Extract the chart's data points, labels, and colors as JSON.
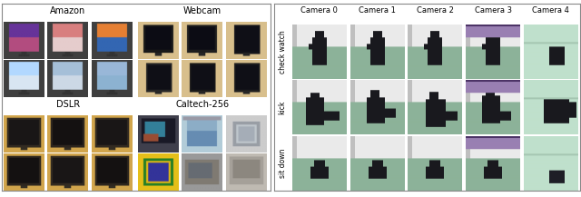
{
  "fig_width": 6.4,
  "fig_height": 2.17,
  "dpi": 100,
  "titles": {
    "amazon": "Amazon",
    "webcam": "Webcam",
    "dslr": "DSLR",
    "caltech": "Caltech-256"
  },
  "col_labels": [
    "Camera 0",
    "Camera 1",
    "Camera 2",
    "Camera 3",
    "Camera 4"
  ],
  "row_labels": [
    "check watch",
    "kick",
    "sit down"
  ],
  "bg_color": "#ffffff",
  "border_color": "#aaaaaa",
  "text_color": "#000000",
  "title_fontsize": 7,
  "label_fontsize": 6,
  "row_label_fontsize": 5.5
}
